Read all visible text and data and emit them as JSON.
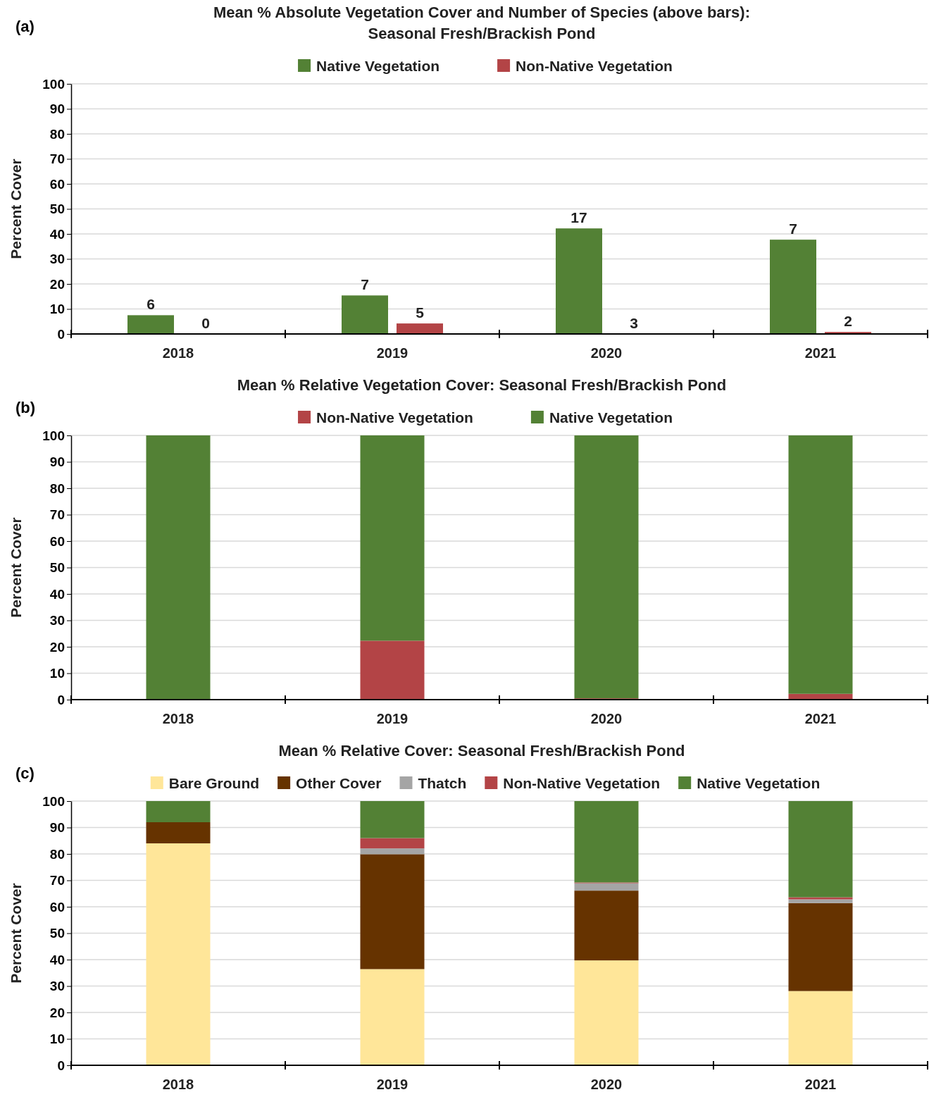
{
  "chart_data": [
    {
      "type": "bar",
      "title": "Mean % Absolute Vegetation Cover and Number of Species (above bars): Seasonal Fresh/Brackish Pond",
      "ylabel": "Percent Cover",
      "categories": [
        "2018",
        "2019",
        "2020",
        "2021"
      ],
      "ylim": [
        0,
        100
      ],
      "yticks": [
        0,
        10,
        20,
        30,
        40,
        50,
        60,
        70,
        80,
        90,
        100
      ],
      "grid": "y",
      "legend": "top",
      "annotations": [
        "(a)",
        "6",
        "0",
        "7",
        "5",
        "17",
        "3",
        "7",
        "2"
      ],
      "series": [
        {
          "name": "Native Vegetation",
          "color": "#538135",
          "values": [
            7.5,
            15.4,
            42.2,
            37.7
          ]
        },
        {
          "name": "Non-Native Vegetation",
          "color": "#b34446",
          "values": [
            0,
            4.2,
            null,
            0.8
          ]
        }
      ]
    },
    {
      "type": "bar",
      "stacked": true,
      "title": "Mean % Relative Vegetation Cover: Seasonal Fresh/Brackish Pond",
      "ylabel": "Percent Cover",
      "annotations": [
        "(b)"
      ],
      "categories": [
        "2018",
        "2019",
        "2020",
        "2021"
      ],
      "ylim": [
        0,
        100
      ],
      "yticks": [
        0,
        10,
        20,
        30,
        40,
        50,
        60,
        70,
        80,
        90,
        100
      ],
      "grid": "y",
      "legend": "top",
      "series": [
        {
          "name": "Non-Native Vegetation",
          "color": "#b34446",
          "values": [
            0,
            22.3,
            0.5,
            2.2
          ]
        },
        {
          "name": "Native Vegetation",
          "color": "#538135",
          "values": [
            100,
            77.7,
            99.5,
            97.8
          ]
        }
      ]
    },
    {
      "type": "bar",
      "stacked": true,
      "title": "Mean % Relative Cover: Seasonal Fresh/Brackish Pond",
      "ylabel": "Percent Cover",
      "annotations": [
        "(c)"
      ],
      "categories": [
        "2018",
        "2019",
        "2020",
        "2021"
      ],
      "ylim": [
        0,
        100
      ],
      "yticks": [
        0,
        10,
        20,
        30,
        40,
        50,
        60,
        70,
        80,
        90,
        100
      ],
      "grid": "y",
      "legend": "top",
      "series": [
        {
          "name": "Bare Ground",
          "color": "#ffe699",
          "values": [
            84,
            36.4,
            39.7,
            28.1
          ]
        },
        {
          "name": "Other Cover",
          "color": "#663300",
          "values": [
            8,
            43.5,
            26.4,
            33.3
          ]
        },
        {
          "name": "Thatch",
          "color": "#a5a5a5",
          "values": [
            0,
            2.2,
            2.8,
            1.4
          ]
        },
        {
          "name": "Non-Native Vegetation",
          "color": "#b34446",
          "values": [
            0,
            3.9,
            0.3,
            0.8
          ]
        },
        {
          "name": "Native Vegetation",
          "color": "#538135",
          "values": [
            8,
            14,
            30.8,
            36.4
          ]
        }
      ]
    }
  ]
}
